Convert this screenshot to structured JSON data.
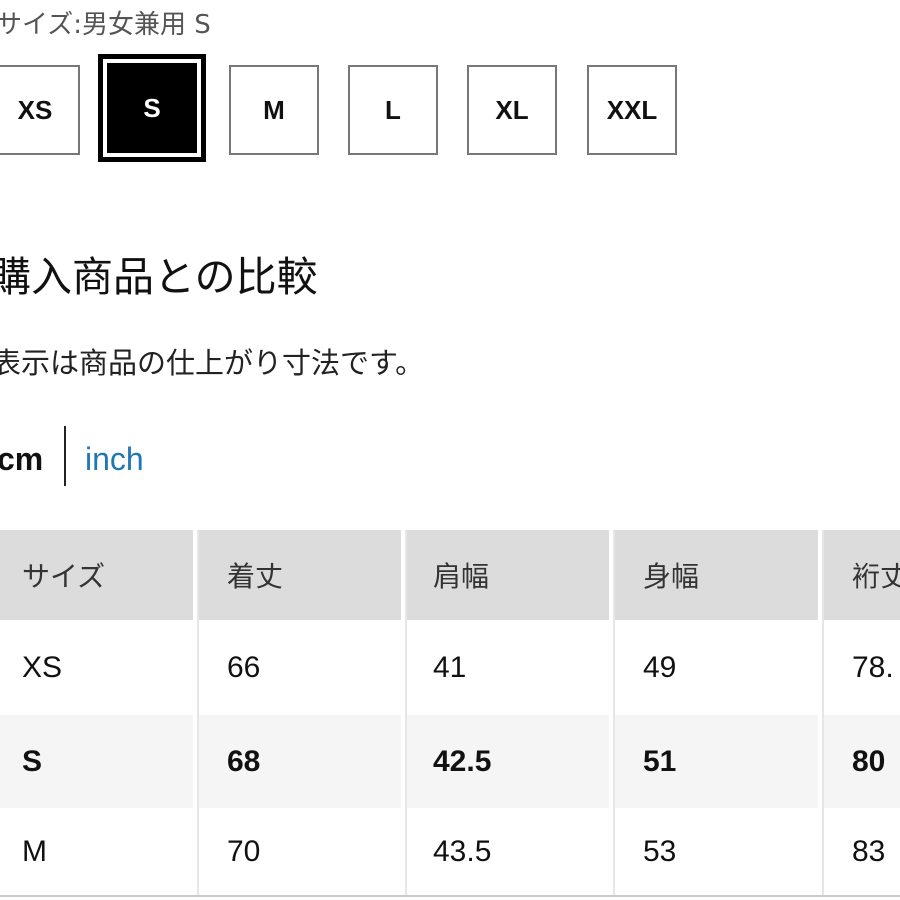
{
  "size_selector": {
    "label": "サイズ:男女兼用 S",
    "options": [
      "XS",
      "S",
      "M",
      "L",
      "XL",
      "XXL"
    ],
    "selected": "S"
  },
  "comparison": {
    "heading": "購入商品との比較",
    "note": "表示は商品の仕上がり寸法です。",
    "units": {
      "cm": "cm",
      "inch": "inch",
      "active": "cm",
      "link_color": "#1f77b4"
    }
  },
  "table": {
    "headers": [
      "サイズ",
      "着丈",
      "肩幅",
      "身幅",
      "裄丈"
    ],
    "rows": [
      [
        "XS",
        "66",
        "41",
        "49",
        "78."
      ],
      [
        "S",
        "68",
        "42.5",
        "51",
        "80"
      ],
      [
        "M",
        "70",
        "43.5",
        "53",
        "83"
      ]
    ],
    "highlighted_row": "S"
  }
}
